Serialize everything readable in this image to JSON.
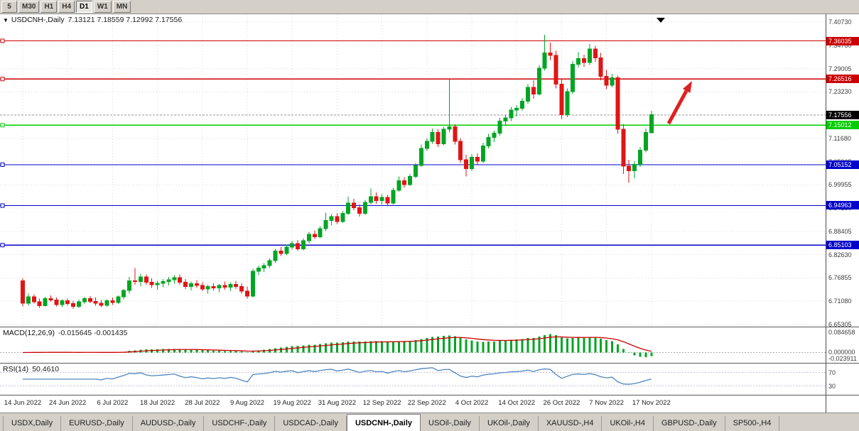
{
  "colors": {
    "candle_up": "#00a524",
    "candle_down": "#e01515",
    "hline_red": "#cc0000",
    "hline_green": "#00cc00",
    "hline_blue": "#0000cc",
    "current_price_bg": "#000000",
    "macd_hist": "#00a524",
    "macd_signal": "#cc0000",
    "rsi_line": "#4f86c0",
    "arrow": "#e02020",
    "grid": "#d9d9d9"
  },
  "toolbar": {
    "timeframes": [
      {
        "label": "5",
        "active": false
      },
      {
        "label": "M30",
        "active": false
      },
      {
        "label": "H1",
        "active": false
      },
      {
        "label": "H4",
        "active": false
      },
      {
        "label": "D1",
        "active": true
      },
      {
        "label": "W1",
        "active": false
      },
      {
        "label": "MN",
        "active": false
      }
    ]
  },
  "chart": {
    "symbol_title": "USDCNH-,Daily",
    "ohlc_text": "7.13121 7.18559 7.12992 7.17556"
  },
  "price_scale": {
    "labels": [
      "7.40730",
      "7.34780",
      "7.29005",
      "7.23230",
      "7.17455",
      "7.11680",
      "7.05905",
      "6.99955",
      "6.94180",
      "6.88405",
      "6.82630",
      "6.76855",
      "6.71080",
      "6.65305"
    ]
  },
  "hlines": [
    {
      "price": 7.36035,
      "label": "7.36035",
      "color_key": "hline_red"
    },
    {
      "price": 7.26516,
      "label": "7.26516",
      "color_key": "hline_red"
    },
    {
      "price": 7.15012,
      "label": "7.15012",
      "color_key": "hline_green"
    },
    {
      "price": 7.05152,
      "label": "7.05152",
      "color_key": "hline_blue"
    },
    {
      "price": 6.94963,
      "label": "6.94963",
      "color_key": "hline_blue"
    },
    {
      "price": 6.85103,
      "label": "6.85103",
      "color_key": "hline_blue"
    }
  ],
  "current_price": {
    "price": 7.17556,
    "label": "7.17556"
  },
  "indicators": {
    "macd": {
      "name": "MACD(12,26,9)",
      "values_text": "-0.015645 -0.001435",
      "scale": [
        {
          "v": 0.084658,
          "label": "0.084658"
        },
        {
          "v": 0.0,
          "label": "0.000000"
        },
        {
          "v": -0.023911,
          "label": "-0.023911"
        }
      ]
    },
    "rsi": {
      "name": "RSI(14)",
      "value_text": "50.4610",
      "levels": [
        70,
        30
      ],
      "scale": [
        {
          "v": 70,
          "label": "70"
        },
        {
          "v": 30,
          "label": "30"
        }
      ]
    }
  },
  "x_axis": {
    "tick_step": 8,
    "dates": [
      "14 Jun 2022",
      "24 Jun 2022",
      "6 Jul 2022",
      "18 Jul 2022",
      "28 Jul 2022",
      "9 Aug 2022",
      "19 Aug 2022",
      "31 Aug 2022",
      "12 Sep 2022",
      "22 Sep 2022",
      "4 Oct 2022",
      "14 Oct 2022",
      "26 Oct 2022",
      "7 Nov 2022",
      "17 Nov 2022"
    ]
  },
  "tabs": [
    {
      "label": "USDX,Daily",
      "active": false
    },
    {
      "label": "EURUSD-,Daily",
      "active": false
    },
    {
      "label": "AUDUSD-,Daily",
      "active": false
    },
    {
      "label": "USDCHF-,Daily",
      "active": false
    },
    {
      "label": "USDCAD-,Daily",
      "active": false
    },
    {
      "label": "USDCNH-,Daily",
      "active": true
    },
    {
      "label": "USOil-,Daily",
      "active": false
    },
    {
      "label": "UKOil-,Daily",
      "active": false
    },
    {
      "label": "XAUUSD-,H4",
      "active": false
    },
    {
      "label": "UKOil-,H4",
      "active": false
    },
    {
      "label": "GBPUSD-,Daily",
      "active": false
    },
    {
      "label": "SP500-,H4",
      "active": false
    }
  ],
  "annotations": {
    "arrow": {
      "direction": "up-right",
      "color": "#e02020"
    }
  },
  "chart_data": {
    "type": "candlestick",
    "title": "USDCNH-,Daily",
    "ylim": [
      6.65305,
      7.4073
    ],
    "candles": [
      [
        6.762,
        6.768,
        6.698,
        6.706
      ],
      [
        6.706,
        6.73,
        6.7,
        6.722
      ],
      [
        6.722,
        6.728,
        6.705,
        6.71
      ],
      [
        6.71,
        6.718,
        6.695,
        6.7
      ],
      [
        6.7,
        6.722,
        6.698,
        6.718
      ],
      [
        6.718,
        6.726,
        6.71,
        6.714
      ],
      [
        6.714,
        6.72,
        6.698,
        6.703
      ],
      [
        6.703,
        6.716,
        6.696,
        6.712
      ],
      [
        6.712,
        6.718,
        6.7,
        6.705
      ],
      [
        6.705,
        6.712,
        6.692,
        6.698
      ],
      [
        6.698,
        6.715,
        6.694,
        6.71
      ],
      [
        6.71,
        6.722,
        6.704,
        6.718
      ],
      [
        6.718,
        6.724,
        6.706,
        6.711
      ],
      [
        6.711,
        6.72,
        6.7,
        6.706
      ],
      [
        6.706,
        6.714,
        6.696,
        6.701
      ],
      [
        6.701,
        6.716,
        6.697,
        6.712
      ],
      [
        6.712,
        6.72,
        6.702,
        6.708
      ],
      [
        6.708,
        6.726,
        6.704,
        6.722
      ],
      [
        6.722,
        6.742,
        6.716,
        6.738
      ],
      [
        6.738,
        6.772,
        6.73,
        6.762
      ],
      [
        6.762,
        6.794,
        6.752,
        6.76
      ],
      [
        6.76,
        6.78,
        6.748,
        6.772
      ],
      [
        6.772,
        6.778,
        6.752,
        6.758
      ],
      [
        6.758,
        6.768,
        6.744,
        6.752
      ],
      [
        6.752,
        6.762,
        6.74,
        6.756
      ],
      [
        6.756,
        6.766,
        6.746,
        6.76
      ],
      [
        6.76,
        6.772,
        6.75,
        6.765
      ],
      [
        6.765,
        6.776,
        6.755,
        6.77
      ],
      [
        6.77,
        6.778,
        6.752,
        6.758
      ],
      [
        6.758,
        6.766,
        6.742,
        6.748
      ],
      [
        6.748,
        6.76,
        6.738,
        6.755
      ],
      [
        6.755,
        6.764,
        6.744,
        6.75
      ],
      [
        6.75,
        6.758,
        6.736,
        6.742
      ],
      [
        6.742,
        6.752,
        6.73,
        6.748
      ],
      [
        6.748,
        6.756,
        6.738,
        6.744
      ],
      [
        6.744,
        6.754,
        6.734,
        6.75
      ],
      [
        6.75,
        6.76,
        6.74,
        6.746
      ],
      [
        6.746,
        6.758,
        6.736,
        6.753
      ],
      [
        6.753,
        6.762,
        6.742,
        6.748
      ],
      [
        6.748,
        6.756,
        6.73,
        6.736
      ],
      [
        6.736,
        6.748,
        6.718,
        6.724
      ],
      [
        6.724,
        6.792,
        6.72,
        6.786
      ],
      [
        6.786,
        6.8,
        6.776,
        6.794
      ],
      [
        6.794,
        6.806,
        6.784,
        6.8
      ],
      [
        6.8,
        6.818,
        6.794,
        6.812
      ],
      [
        6.812,
        6.842,
        6.806,
        6.836
      ],
      [
        6.836,
        6.846,
        6.824,
        6.83
      ],
      [
        6.83,
        6.852,
        6.826,
        6.846
      ],
      [
        6.846,
        6.862,
        6.84,
        6.855
      ],
      [
        6.855,
        6.864,
        6.836,
        6.842
      ],
      [
        6.842,
        6.868,
        6.838,
        6.862
      ],
      [
        6.862,
        6.884,
        6.856,
        6.878
      ],
      [
        6.878,
        6.888,
        6.866,
        6.872
      ],
      [
        6.872,
        6.898,
        6.868,
        6.892
      ],
      [
        6.892,
        6.932,
        6.886,
        6.912
      ],
      [
        6.912,
        6.928,
        6.9,
        6.922
      ],
      [
        6.922,
        6.93,
        6.904,
        6.91
      ],
      [
        6.91,
        6.936,
        6.906,
        6.93
      ],
      [
        6.93,
        6.972,
        6.926,
        6.956
      ],
      [
        6.956,
        6.966,
        6.938,
        6.944
      ],
      [
        6.944,
        6.952,
        6.922,
        6.93
      ],
      [
        6.93,
        6.964,
        6.926,
        6.958
      ],
      [
        6.958,
        6.992,
        6.952,
        6.972
      ],
      [
        6.972,
        6.982,
        6.954,
        6.962
      ],
      [
        6.962,
        6.978,
        6.952,
        6.97
      ],
      [
        6.97,
        6.976,
        6.948,
        6.956
      ],
      [
        6.956,
        6.994,
        6.952,
        6.988
      ],
      [
        6.988,
        7.022,
        6.984,
        7.012
      ],
      [
        7.012,
        7.02,
        6.994,
        7.002
      ],
      [
        7.002,
        7.028,
        6.998,
        7.022
      ],
      [
        7.022,
        7.056,
        7.018,
        7.05
      ],
      [
        7.05,
        7.102,
        7.046,
        7.092
      ],
      [
        7.092,
        7.118,
        7.086,
        7.11
      ],
      [
        7.11,
        7.142,
        7.104,
        7.132
      ],
      [
        7.132,
        7.14,
        7.096,
        7.104
      ],
      [
        7.104,
        7.146,
        7.1,
        7.14
      ],
      [
        7.14,
        7.264,
        7.132,
        7.146
      ],
      [
        7.146,
        7.152,
        7.102,
        7.11
      ],
      [
        7.11,
        7.118,
        7.056,
        7.064
      ],
      [
        7.064,
        7.076,
        7.022,
        7.042
      ],
      [
        7.042,
        7.078,
        7.036,
        7.07
      ],
      [
        7.07,
        7.08,
        7.052,
        7.06
      ],
      [
        7.06,
        7.106,
        7.056,
        7.098
      ],
      [
        7.098,
        7.128,
        7.092,
        7.12
      ],
      [
        7.12,
        7.136,
        7.108,
        7.13
      ],
      [
        7.13,
        7.168,
        7.124,
        7.16
      ],
      [
        7.16,
        7.176,
        7.148,
        7.168
      ],
      [
        7.168,
        7.196,
        7.16,
        7.188
      ],
      [
        7.188,
        7.2,
        7.172,
        7.192
      ],
      [
        7.192,
        7.218,
        7.186,
        7.21
      ],
      [
        7.21,
        7.252,
        7.204,
        7.244
      ],
      [
        7.244,
        7.262,
        7.216,
        7.228
      ],
      [
        7.228,
        7.3,
        7.224,
        7.292
      ],
      [
        7.292,
        7.375,
        7.286,
        7.33
      ],
      [
        7.33,
        7.356,
        7.312,
        7.324
      ],
      [
        7.324,
        7.336,
        7.242,
        7.252
      ],
      [
        7.252,
        7.264,
        7.166,
        7.176
      ],
      [
        7.176,
        7.242,
        7.17,
        7.234
      ],
      [
        7.234,
        7.31,
        7.228,
        7.302
      ],
      [
        7.302,
        7.332,
        7.294,
        7.316
      ],
      [
        7.316,
        7.326,
        7.296,
        7.306
      ],
      [
        7.306,
        7.352,
        7.3,
        7.34
      ],
      [
        7.34,
        7.348,
        7.308,
        7.318
      ],
      [
        7.318,
        7.33,
        7.262,
        7.272
      ],
      [
        7.272,
        7.288,
        7.24,
        7.25
      ],
      [
        7.25,
        7.278,
        7.244,
        7.268
      ],
      [
        7.268,
        7.274,
        7.128,
        7.14
      ],
      [
        7.14,
        7.152,
        7.028,
        7.048
      ],
      [
        7.048,
        7.064,
        7.006,
        7.036
      ],
      [
        7.036,
        7.06,
        7.018,
        7.052
      ],
      [
        7.052,
        7.096,
        7.046,
        7.088
      ],
      [
        7.088,
        7.142,
        7.082,
        7.132
      ],
      [
        7.131,
        7.186,
        7.13,
        7.176
      ]
    ]
  }
}
